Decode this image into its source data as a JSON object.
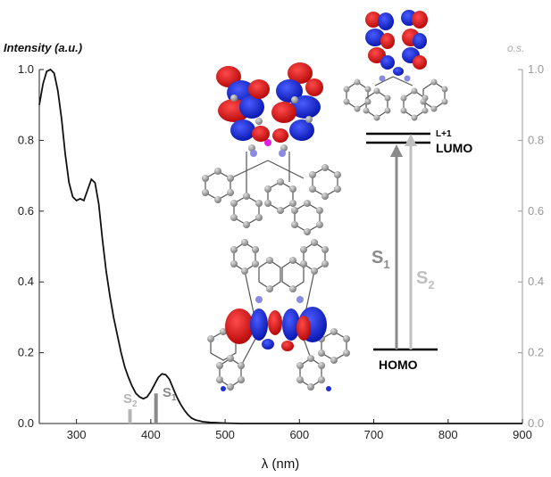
{
  "chart_data": {
    "type": "line",
    "xlabel": "λ (nm)",
    "ylabel": "Intensity (a.u.)",
    "ylabel_right": "o.s.",
    "xlim": [
      250,
      900
    ],
    "ylim": [
      0,
      1.0
    ],
    "x_ticks": [
      300,
      400,
      500,
      600,
      700,
      800,
      900
    ],
    "y_ticks": [
      0.0,
      0.2,
      0.4,
      0.6,
      0.8,
      1.0
    ],
    "y_tick_labels": [
      "0.0",
      "0.2",
      "0.4",
      "0.6",
      "0.8",
      "1.0"
    ],
    "series": [
      {
        "x": [
          250,
          255,
          260,
          265,
          270,
          275,
          280,
          285,
          290,
          295,
          300,
          305,
          310,
          315,
          320,
          325,
          330,
          335,
          340,
          345,
          350,
          355,
          360,
          365,
          370,
          375,
          380,
          385,
          390,
          395,
          400,
          405,
          410,
          415,
          420,
          425,
          430,
          435,
          440,
          445,
          450,
          455,
          460,
          470,
          480,
          490,
          500,
          520,
          550,
          600,
          700,
          800,
          900
        ],
        "y": [
          0.9,
          0.96,
          0.995,
          1.0,
          0.99,
          0.94,
          0.86,
          0.76,
          0.68,
          0.64,
          0.63,
          0.635,
          0.63,
          0.66,
          0.69,
          0.68,
          0.62,
          0.52,
          0.43,
          0.36,
          0.3,
          0.25,
          0.2,
          0.16,
          0.13,
          0.105,
          0.085,
          0.075,
          0.07,
          0.075,
          0.09,
          0.11,
          0.13,
          0.14,
          0.138,
          0.125,
          0.1,
          0.075,
          0.055,
          0.038,
          0.025,
          0.015,
          0.01,
          0.005,
          0.003,
          0.002,
          0.001,
          0.0,
          0.0,
          0.0,
          0.0,
          0.0,
          0.0
        ]
      }
    ],
    "transitions": [
      {
        "label": "S",
        "sub": "2",
        "x": 372,
        "os": 0.04,
        "color": "#b5b5b5"
      },
      {
        "label": "S",
        "sub": "1",
        "x": 407,
        "os": 0.085,
        "color": "#8a8a8a"
      }
    ],
    "colors": {
      "curve": "#111111",
      "s1": "#8a8a8a",
      "s2": "#b5b5b5",
      "axis_right": "#999999"
    }
  },
  "energy_diagram": {
    "homo_label": "HOMO",
    "lumo_label": "LUMO",
    "lplus1_label": "L+1",
    "s1_label": "S",
    "s1_sub": "1",
    "s2_label": "S",
    "s2_sub": "2"
  }
}
